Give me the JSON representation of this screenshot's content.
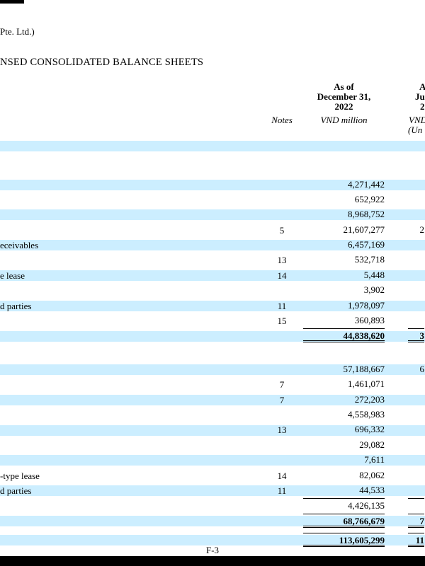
{
  "header": {
    "company_fragment": "Pte. Ltd.)",
    "title_fragment": "NSED CONSOLIDATED BALANCE SHEETS"
  },
  "columns": {
    "notes_label": "Notes",
    "dec_2022": {
      "line1": "As of",
      "line2": "December 31,",
      "line3": "2022",
      "unit": "VND million"
    },
    "jun_2023_fragments": {
      "line1": "A",
      "line2": "Ju",
      "line3": "2",
      "unit": "VND",
      "unaudited": "(Un"
    }
  },
  "colors": {
    "stripe": "#cceeff",
    "rule": "#000000",
    "bottom_bar": "#000000"
  },
  "table": {
    "rows": [
      {
        "kind": "band"
      },
      {
        "kind": "gap-header"
      },
      {
        "kind": "item",
        "shade": true,
        "value": "4,271,442"
      },
      {
        "kind": "item",
        "shade": false,
        "value": "652,922"
      },
      {
        "kind": "item",
        "shade": true,
        "value": "8,968,752"
      },
      {
        "kind": "item",
        "shade": false,
        "note": "5",
        "value": "21,607,277",
        "next_col_fragment": "2"
      },
      {
        "kind": "item",
        "shade": true,
        "label_fragment": "eceivables",
        "value": "6,457,169"
      },
      {
        "kind": "item",
        "shade": false,
        "note": "13",
        "value": "532,718"
      },
      {
        "kind": "item",
        "shade": true,
        "label_fragment": "e lease",
        "note": "14",
        "value": "5,448"
      },
      {
        "kind": "item",
        "shade": false,
        "value": "3,902"
      },
      {
        "kind": "item",
        "shade": true,
        "label_fragment": "d parties",
        "note": "11",
        "value": "1,978,097"
      },
      {
        "kind": "item",
        "shade": false,
        "note": "15",
        "value": "360,893"
      },
      {
        "kind": "total",
        "shade": true,
        "value": "44,838,620",
        "next_col_fragment": "3"
      },
      {
        "kind": "gap-section"
      },
      {
        "kind": "item",
        "shade": true,
        "value": "57,188,667",
        "next_col_fragment": "6"
      },
      {
        "kind": "item",
        "shade": false,
        "note": "7",
        "value": "1,461,071"
      },
      {
        "kind": "item",
        "shade": true,
        "note": "7",
        "value": "272,203"
      },
      {
        "kind": "item",
        "shade": false,
        "value": "4,558,983"
      },
      {
        "kind": "item",
        "shade": true,
        "note": "13",
        "value": "696,332"
      },
      {
        "kind": "item",
        "shade": false,
        "value": "29,082"
      },
      {
        "kind": "item",
        "shade": true,
        "value": "7,611"
      },
      {
        "kind": "item",
        "shade": false,
        "label_fragment": "-type lease",
        "note": "14",
        "value": "82,062"
      },
      {
        "kind": "item",
        "shade": true,
        "label_fragment": "d parties",
        "note": "11",
        "value": "44,533"
      },
      {
        "kind": "subtotal",
        "shade": false,
        "value": "4,426,135"
      },
      {
        "kind": "total",
        "shade": true,
        "value": "68,766,679",
        "next_col_fragment": "7"
      },
      {
        "kind": "gap-small"
      },
      {
        "kind": "total",
        "shade": true,
        "value": "113,605,299",
        "next_col_fragment": "11"
      }
    ]
  },
  "footer": {
    "page_number": "F-3"
  }
}
